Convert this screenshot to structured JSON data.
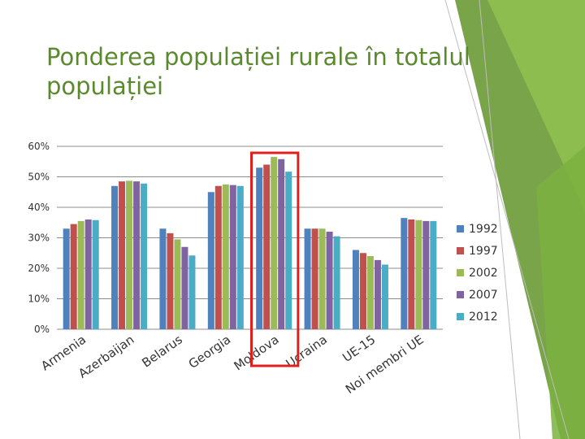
{
  "slide": {
    "title": "Ponderea populației rurale în totalul populației",
    "accent_color": "#5b8a2e",
    "highlight_color": "#e0201c",
    "highlighted_category": "Moldova"
  },
  "chart_data": {
    "type": "bar",
    "title": "",
    "xlabel": "",
    "ylabel": "",
    "ylim": [
      0,
      0.6
    ],
    "yticks": [
      0,
      0.1,
      0.2,
      0.3,
      0.4,
      0.5,
      0.6
    ],
    "ytick_labels": [
      "0%",
      "10%",
      "20%",
      "30%",
      "40%",
      "50%",
      "60%"
    ],
    "grid": true,
    "legend_position": "right",
    "categories": [
      "Armenia",
      "Azerbaijan",
      "Belarus",
      "Georgia",
      "Moldova",
      "Ucraina",
      "UE-15",
      "Noi membri UE"
    ],
    "series": [
      {
        "name": "1992",
        "color": "#4f81bd",
        "values": [
          0.33,
          0.47,
          0.33,
          0.45,
          0.53,
          0.33,
          0.26,
          0.365
        ]
      },
      {
        "name": "1997",
        "color": "#c0504d",
        "values": [
          0.345,
          0.485,
          0.315,
          0.47,
          0.54,
          0.33,
          0.25,
          0.36
        ]
      },
      {
        "name": "2002",
        "color": "#9bbb59",
        "values": [
          0.355,
          0.487,
          0.295,
          0.475,
          0.565,
          0.33,
          0.24,
          0.358
        ]
      },
      {
        "name": "2007",
        "color": "#8064a2",
        "values": [
          0.36,
          0.485,
          0.27,
          0.473,
          0.558,
          0.32,
          0.227,
          0.355
        ]
      },
      {
        "name": "2012",
        "color": "#4bacc6",
        "values": [
          0.358,
          0.478,
          0.242,
          0.47,
          0.517,
          0.305,
          0.212,
          0.355
        ]
      }
    ]
  }
}
